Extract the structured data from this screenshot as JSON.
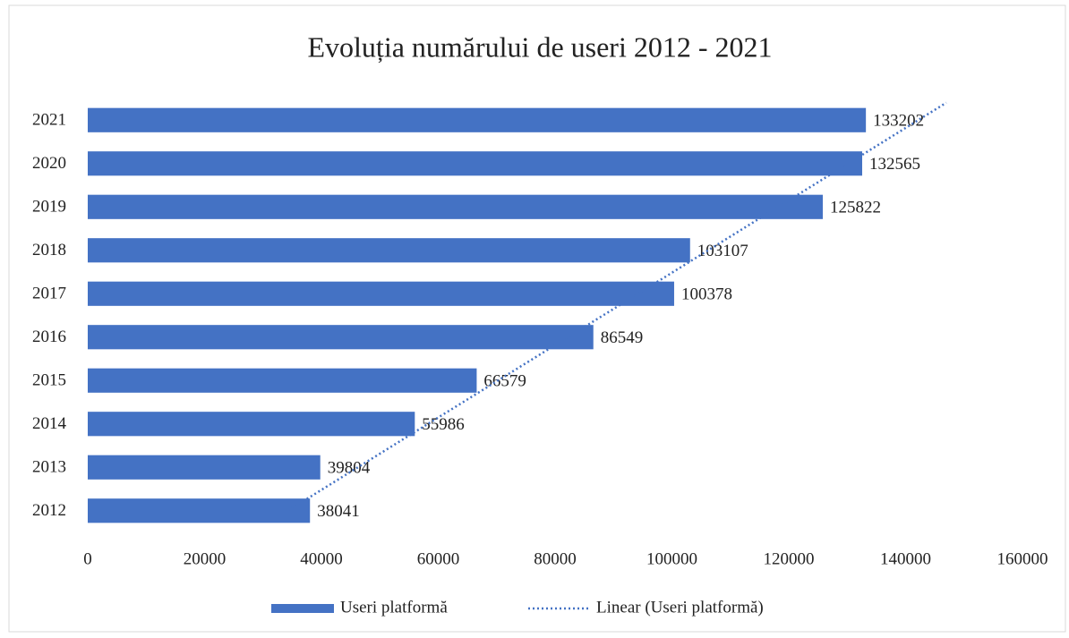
{
  "chart_data": {
    "type": "hbar",
    "title": "Evoluția numărului de useri 2012 - 2021",
    "categories": [
      "2012",
      "2013",
      "2014",
      "2015",
      "2016",
      "2017",
      "2018",
      "2019",
      "2020",
      "2021"
    ],
    "series": [
      {
        "name": "Useri platformă",
        "color": "#4472c4",
        "values": [
          38041,
          39804,
          55986,
          66579,
          86549,
          100378,
          103107,
          125822,
          132565,
          133202
        ]
      }
    ],
    "trendline": {
      "name": "Linear (Useri platformă)",
      "kind": "linear",
      "color": "#4472c4"
    },
    "xlim": [
      0,
      160000
    ],
    "xticks": [
      0,
      20000,
      40000,
      60000,
      80000,
      100000,
      120000,
      140000,
      160000
    ],
    "grid": false,
    "legend": "bottom"
  }
}
